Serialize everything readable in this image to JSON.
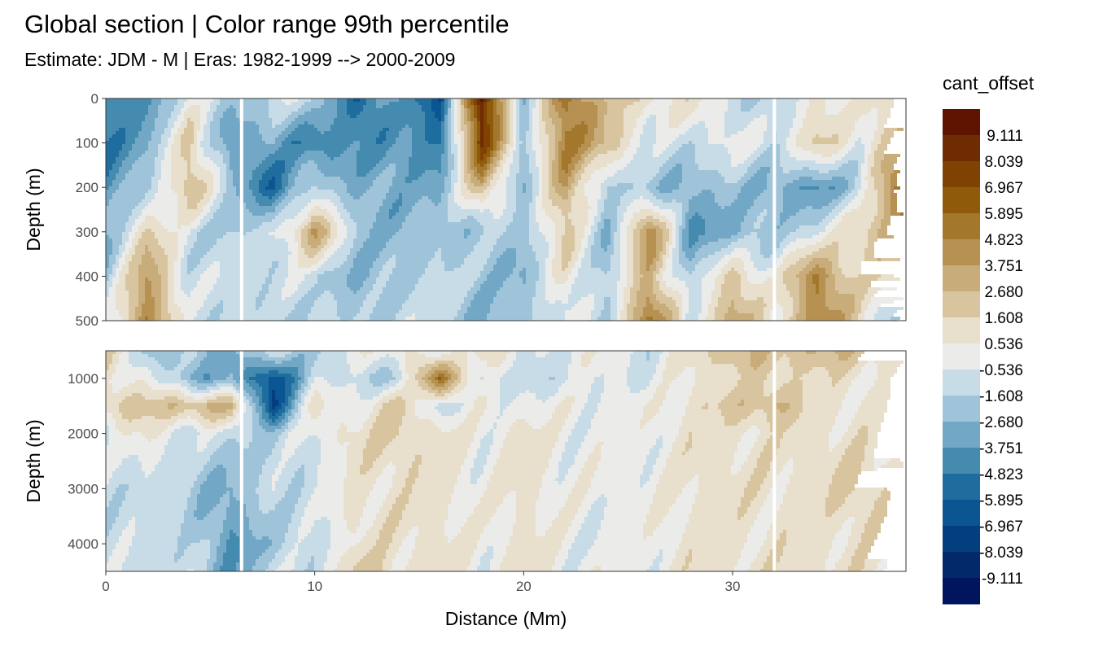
{
  "title": "Global section | Color range 99th percentile",
  "subtitle": "Estimate: JDM - M | Eras: 1982-1999 --> 2000-2009",
  "chart_data": {
    "type": "heatmap",
    "xlabel": "Distance (Mm)",
    "ylabel": "Depth (m)",
    "xlim": [
      0,
      38.3
    ],
    "x_ticks": [
      "0",
      "10",
      "20",
      "30"
    ],
    "x_tick_values": [
      0,
      10,
      20,
      30
    ],
    "legend": {
      "title": "cant_offset",
      "placement": "right",
      "labels": [
        "9.111",
        "8.039",
        "6.967",
        "5.895",
        "4.823",
        "3.751",
        "2.680",
        "1.608",
        "0.536",
        "-0.536",
        "-1.608",
        "-2.680",
        "-3.751",
        "-4.823",
        "-5.895",
        "-6.967",
        "-8.039",
        "-9.111"
      ],
      "breaks": [
        9.111,
        8.039,
        6.967,
        5.895,
        4.823,
        3.751,
        2.68,
        1.608,
        0.536,
        -0.536,
        -1.608,
        -2.68,
        -3.751,
        -4.823,
        -5.895,
        -6.967,
        -8.039,
        -9.111
      ],
      "colors": [
        "#5e1400",
        "#6f2c02",
        "#7f4203",
        "#905a0b",
        "#a3772c",
        "#b69152",
        "#c8ac7a",
        "#d8c59f",
        "#e8dfcc",
        "#ebecea",
        "#c8dce8",
        "#9fc4d9",
        "#72a8c6",
        "#448baf",
        "#1f6d9f",
        "#0a5592",
        "#033f7e",
        "#022a6b",
        "#01155e"
      ]
    },
    "gaps_x": [
      6.5,
      32.0
    ],
    "x": [
      0,
      2,
      4,
      6,
      8,
      10,
      12,
      14,
      16,
      18,
      20,
      22,
      24,
      26,
      28,
      30,
      32,
      34,
      36,
      38
    ],
    "panels": [
      {
        "name": "upper",
        "ylim": [
          500,
          0
        ],
        "y_ticks": [
          "0",
          "100",
          "200",
          "300",
          "400",
          "500"
        ],
        "y_tick_values": [
          0,
          100,
          200,
          300,
          400,
          500
        ],
        "depth": [
          0,
          100,
          200,
          300,
          400,
          500
        ],
        "values": [
          [
            -5,
            -4,
            0,
            -2,
            -1,
            -1,
            -6,
            -3,
            -7,
            10,
            -3,
            6,
            2,
            1,
            1,
            -1,
            -2,
            1,
            0,
            2
          ],
          [
            -5,
            -3,
            2,
            -4,
            -3,
            -5,
            -4,
            -4,
            -5,
            8,
            -2,
            5,
            3,
            -1,
            -1,
            0,
            -1,
            2,
            0,
            3
          ],
          [
            -4,
            -2,
            3,
            -2,
            -6,
            -1,
            -3,
            -3,
            -3,
            3,
            -3,
            4,
            -2,
            -2,
            -3,
            -2,
            -3,
            -4,
            -2,
            6
          ],
          [
            -3,
            2,
            -1,
            -2,
            -1,
            4,
            -2,
            -3,
            -2,
            -2,
            -2,
            2,
            -3,
            5,
            -4,
            -3,
            -2,
            -1,
            2,
            4
          ],
          [
            -2,
            4,
            -1,
            -1,
            -1,
            -1,
            -3,
            -2,
            -1,
            -2,
            -3,
            1,
            -2,
            3,
            -2,
            2,
            0,
            5,
            1,
            2
          ],
          [
            -1,
            5,
            -1,
            -1,
            -2,
            -1,
            -2,
            -1,
            -1,
            -3,
            -2,
            0,
            -2,
            6,
            -1,
            4,
            0,
            5,
            2,
            -3
          ]
        ]
      },
      {
        "name": "lower",
        "ylim": [
          4500,
          500
        ],
        "y_ticks": [
          "1000",
          "2000",
          "3000",
          "4000"
        ],
        "y_tick_values": [
          1000,
          2000,
          3000,
          4000
        ],
        "depth": [
          500,
          1000,
          1500,
          2000,
          3000,
          4000,
          4500
        ],
        "values": [
          [
            2,
            -2,
            -2,
            -3,
            -1,
            -2,
            0,
            1,
            -1,
            2,
            -1,
            0,
            0,
            -1,
            1,
            3,
            2,
            3,
            2,
            1
          ],
          [
            1,
            0,
            -3,
            -3,
            -7,
            -1,
            -1,
            -2,
            6,
            -1,
            -1,
            -1,
            0,
            -1,
            1,
            1,
            2,
            1,
            1,
            0
          ],
          [
            2,
            2,
            3,
            3,
            -7,
            1,
            0,
            2,
            -1,
            0,
            0,
            0,
            0,
            0,
            1,
            2,
            3,
            1,
            1,
            0
          ],
          [
            -1,
            1,
            -1,
            -1,
            -2,
            0,
            1,
            2,
            1,
            0,
            1,
            0,
            0,
            0,
            1,
            1,
            1,
            1,
            1,
            0
          ],
          [
            -1,
            -1,
            -2,
            -3,
            -1,
            -1,
            1,
            1,
            1,
            0,
            1,
            0,
            0,
            0,
            1,
            1,
            1,
            1,
            2,
            1
          ],
          [
            -1,
            -1,
            -1,
            -4,
            -2,
            -1,
            1,
            1,
            1,
            0,
            1,
            0,
            -0.5,
            0,
            1,
            1,
            1,
            1,
            1,
            1
          ],
          [
            -1,
            -1,
            -1,
            -4,
            -1,
            -1,
            2,
            1,
            1,
            0,
            1,
            0,
            0,
            0,
            1,
            1,
            1,
            1,
            1,
            1
          ]
        ]
      }
    ]
  }
}
